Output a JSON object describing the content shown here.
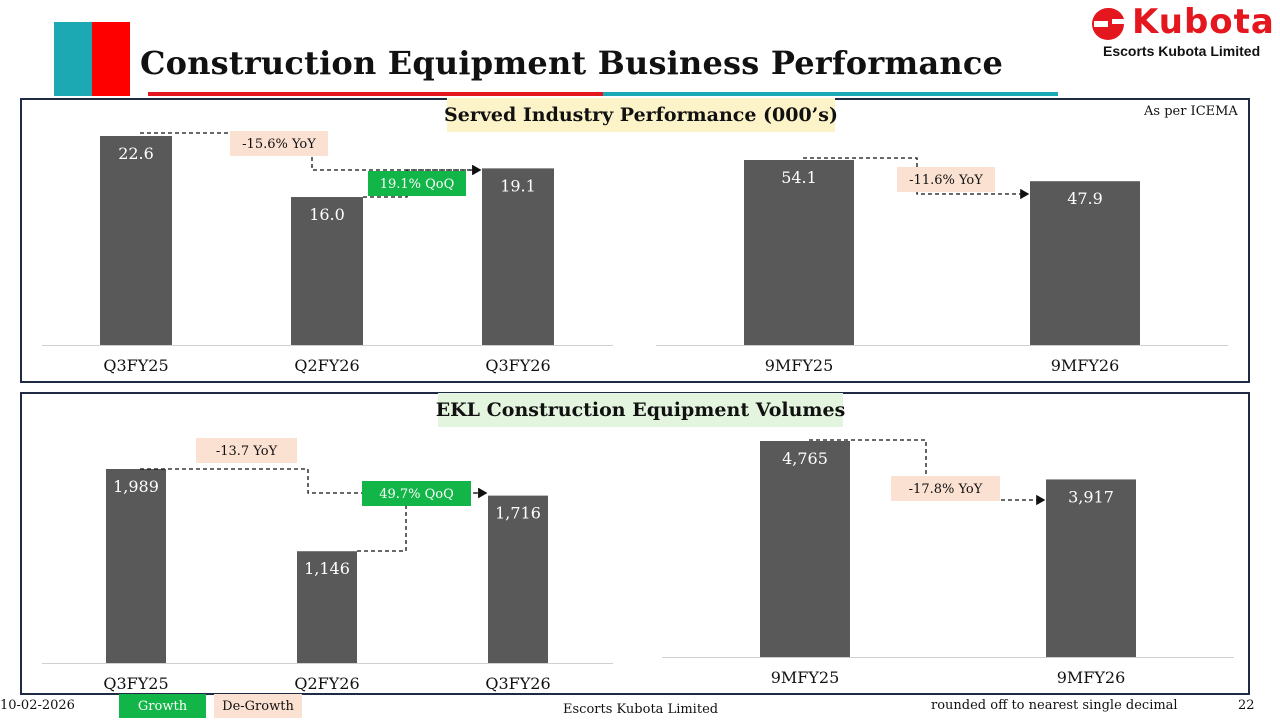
{
  "page": {
    "title": "Construction Equipment Business Performance",
    "logo_word": "Kubota",
    "logo_sub": "Escorts Kubota Limited",
    "note": "As per ICEMA"
  },
  "colors": {
    "bar": "#595959",
    "growth": "#12b548",
    "degrowth": "#fbe1d2",
    "accent_red": "#e4161e",
    "accent_teal": "#1ca9b4"
  },
  "footer": {
    "date": "10-02-2026",
    "legend_growth": "Growth",
    "legend_degrowth": "De-Growth",
    "company": "Escorts Kubota Limited",
    "note": "rounded off to nearest single decimal",
    "page_number": "22"
  },
  "chart_data": [
    {
      "type": "bar",
      "panel": "Served Industry Performance (000’s)",
      "title": "Served Industry Performance (000’s) - Quarterly",
      "categories": [
        "Q3FY25",
        "Q2FY26",
        "Q3FY26"
      ],
      "values": [
        22.6,
        16.0,
        19.1
      ],
      "labels": [
        "22.6",
        "16.0",
        "19.1"
      ],
      "ylim": [
        0,
        24
      ],
      "annotations": [
        {
          "from": 0,
          "to": 2,
          "text": "-15.6% YoY",
          "kind": "degrowth"
        },
        {
          "from": 1,
          "to": 2,
          "text": "19.1% QoQ",
          "kind": "growth"
        }
      ]
    },
    {
      "type": "bar",
      "panel": "Served Industry Performance (000’s)",
      "title": "Served Industry Performance (000’s) - Nine months",
      "categories": [
        "9MFY25",
        "9MFY26"
      ],
      "values": [
        54.1,
        47.9
      ],
      "labels": [
        "54.1",
        "47.9"
      ],
      "ylim": [
        0,
        57
      ],
      "annotations": [
        {
          "from": 0,
          "to": 1,
          "text": "-11.6% YoY",
          "kind": "degrowth"
        }
      ]
    },
    {
      "type": "bar",
      "panel": "EKL Construction Equipment Volumes",
      "title": "EKL Construction Equipment Volumes - Quarterly",
      "categories": [
        "Q3FY25",
        "Q2FY26",
        "Q3FY26"
      ],
      "values": [
        1989,
        1146,
        1716
      ],
      "labels": [
        "1,989",
        "1,146",
        "1,716"
      ],
      "ylim": [
        0,
        2120
      ],
      "annotations": [
        {
          "from": 0,
          "to": 2,
          "text": "-13.7 YoY",
          "kind": "degrowth"
        },
        {
          "from": 1,
          "to": 2,
          "text": "49.7% QoQ",
          "kind": "growth"
        }
      ]
    },
    {
      "type": "bar",
      "panel": "EKL Construction Equipment Volumes",
      "title": "EKL Construction Equipment Volumes - Nine months",
      "categories": [
        "9MFY25",
        "9MFY26"
      ],
      "values": [
        4765,
        3917
      ],
      "labels": [
        "4,765",
        "3,917"
      ],
      "ylim": [
        0,
        5015
      ],
      "annotations": [
        {
          "from": 0,
          "to": 1,
          "text": "-17.8% YoY",
          "kind": "degrowth"
        }
      ]
    }
  ]
}
